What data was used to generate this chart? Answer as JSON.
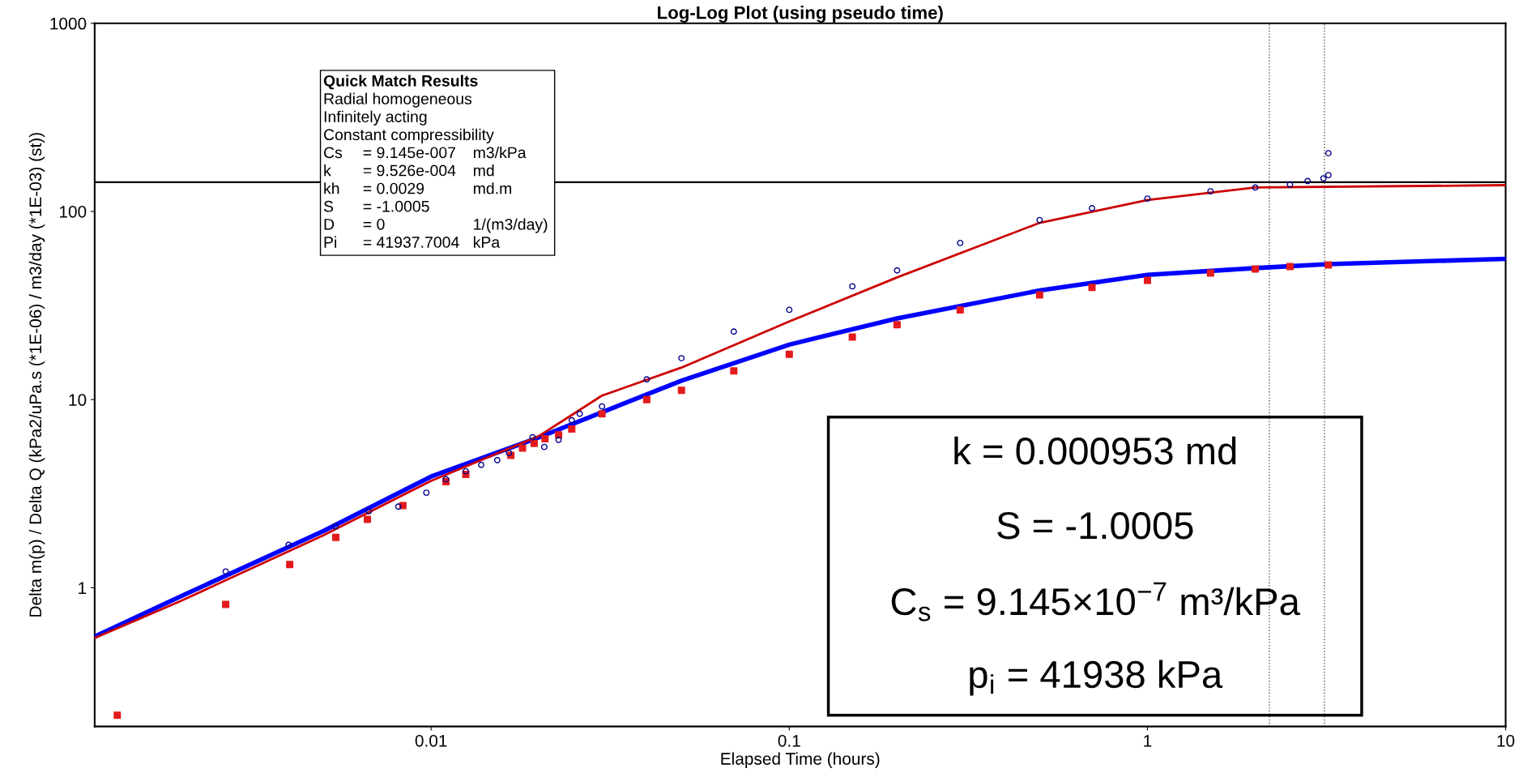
{
  "chart_data": {
    "type": "line",
    "title": "Log-Log Plot (using pseudo time)",
    "xlabel": "Elapsed Time (hours)",
    "ylabel": "Delta m(p) / Delta Q (kPa2/uPa.s (*1E-06) / m3/day (*1E-03) (st))",
    "log": "xy",
    "xlim": [
      0.00115,
      10
    ],
    "ylim": [
      0.183,
      1000
    ],
    "xticks": [
      0.01,
      0.1,
      1,
      10
    ],
    "yticks": [
      1,
      10,
      100,
      1000
    ],
    "grid": false,
    "series": [
      {
        "type": "line",
        "color": "#0000ff",
        "marker": "none",
        "line_style": "solid",
        "x": [
          0.00115,
          0.002,
          0.005,
          0.01,
          0.02,
          0.05,
          0.1,
          0.2,
          0.5,
          1,
          2,
          3.2,
          10
        ],
        "values": [
          0.55,
          0.9,
          2.0,
          3.9,
          6.3,
          12.6,
          19.6,
          27,
          38,
          46,
          50,
          52.5,
          56
        ]
      },
      {
        "type": "scatter",
        "color": "#e41a1c",
        "marker": "square",
        "x": [
          0.00133,
          0.00267,
          0.00403,
          0.00542,
          0.00664,
          0.00834,
          0.011,
          0.0125,
          0.0167,
          0.018,
          0.0194,
          0.0208,
          0.0227,
          0.0247,
          0.03,
          0.04,
          0.05,
          0.07,
          0.1,
          0.15,
          0.2,
          0.3,
          0.5,
          0.7,
          1,
          1.5,
          2,
          2.5,
          3.2
        ],
        "values": [
          0.21,
          0.815,
          1.33,
          1.85,
          2.31,
          2.73,
          3.66,
          4.0,
          5.05,
          5.52,
          5.85,
          6.2,
          6.5,
          6.97,
          8.4,
          10.0,
          11.2,
          14.2,
          17.4,
          21.5,
          25,
          30,
          36,
          39.5,
          43,
          47,
          49.5,
          51,
          52
        ]
      },
      {
        "type": "scatter",
        "color": "#00008b",
        "marker": "circle",
        "x": [
          0.00267,
          0.004,
          0.0054,
          0.0067,
          0.0081,
          0.0097,
          0.011,
          0.0125,
          0.0138,
          0.0153,
          0.0165,
          0.0192,
          0.0207,
          0.0227,
          0.0247,
          0.026,
          0.03,
          0.04,
          0.05,
          0.07,
          0.1,
          0.15,
          0.2,
          0.3,
          0.5,
          0.7,
          1,
          1.5,
          2,
          2.5,
          2.8,
          3.1,
          3.2,
          3.2
        ],
        "values": [
          1.22,
          1.69,
          2.12,
          2.55,
          2.7,
          3.2,
          3.77,
          4.16,
          4.5,
          4.76,
          5.2,
          6.3,
          5.6,
          6.1,
          7.76,
          8.4,
          9.2,
          12.8,
          16.6,
          23,
          30,
          40,
          48.6,
          68,
          90,
          104,
          117,
          128,
          134,
          139,
          145,
          150,
          156,
          204
        ]
      },
      {
        "color": "#cc0000",
        "marker": "none",
        "line_style": "solid",
        "x": [
          0.00115,
          0.002,
          0.005,
          0.01,
          0.02,
          0.025,
          0.03,
          0.05,
          0.1,
          0.2,
          0.5,
          1,
          2,
          10
        ],
        "values": [
          0.54,
          0.85,
          1.9,
          3.7,
          6.4,
          8.4,
          10.5,
          14.8,
          26,
          44.6,
          87,
          115,
          134,
          138
        ]
      }
    ],
    "ref_lines": [
      {
        "axis": "y",
        "value": 143,
        "color": "#000000",
        "line_style": "solid"
      },
      {
        "axis": "x",
        "value": 2.19,
        "color": "#555555",
        "line_style": "dotted"
      },
      {
        "axis": "x",
        "value": 3.12,
        "color": "#555555",
        "line_style": "dotted"
      }
    ],
    "annotations": [
      "Quick Match Results\nRadial homogeneous\nInfinitely acting\nConstant compressibility\nCs\t= 9.145e-007\tm3/kPa\nk\t= 9.526e-004\tmd\nkh\t= 0.0029\tmd.m\nS\t= -1.0005\t\nD\t= 0\t1/(m3/day)\nPi\t= 41937.7004\tkPa",
      "k = 0.000953 md\nS = -1.0005\nC$_{s}$ = 9.145×10$^{−7}$ m³/kPa\np$_{i}$ = 41938 kPa"
    ]
  }
}
